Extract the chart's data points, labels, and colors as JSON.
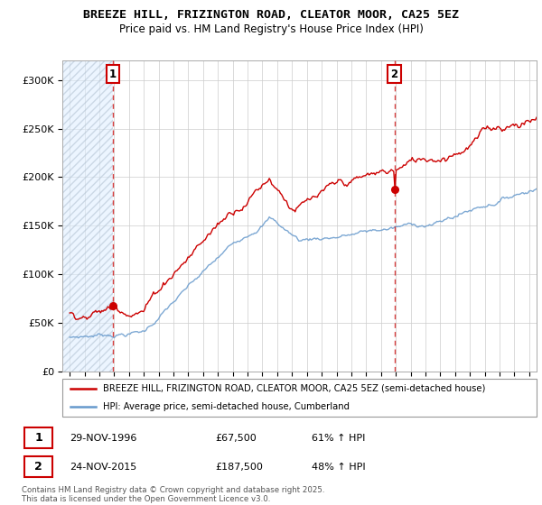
{
  "title": "BREEZE HILL, FRIZINGTON ROAD, CLEATOR MOOR, CA25 5EZ",
  "subtitle": "Price paid vs. HM Land Registry's House Price Index (HPI)",
  "legend_line1": "BREEZE HILL, FRIZINGTON ROAD, CLEATOR MOOR, CA25 5EZ (semi-detached house)",
  "legend_line2": "HPI: Average price, semi-detached house, Cumberland",
  "sale1_date": "29-NOV-1996",
  "sale1_price": 67500,
  "sale1_pct": "61% ↑ HPI",
  "sale1_year": 1996.91,
  "sale2_date": "24-NOV-2015",
  "sale2_price": 187500,
  "sale2_pct": "48% ↑ HPI",
  "sale2_year": 2015.91,
  "red_color": "#cc0000",
  "blue_color": "#6699cc",
  "footer": "Contains HM Land Registry data © Crown copyright and database right 2025.\nThis data is licensed under the Open Government Licence v3.0.",
  "ylim": [
    0,
    320000
  ],
  "xmin": 1993.5,
  "xmax": 2025.5,
  "background_color": "#ffffff"
}
